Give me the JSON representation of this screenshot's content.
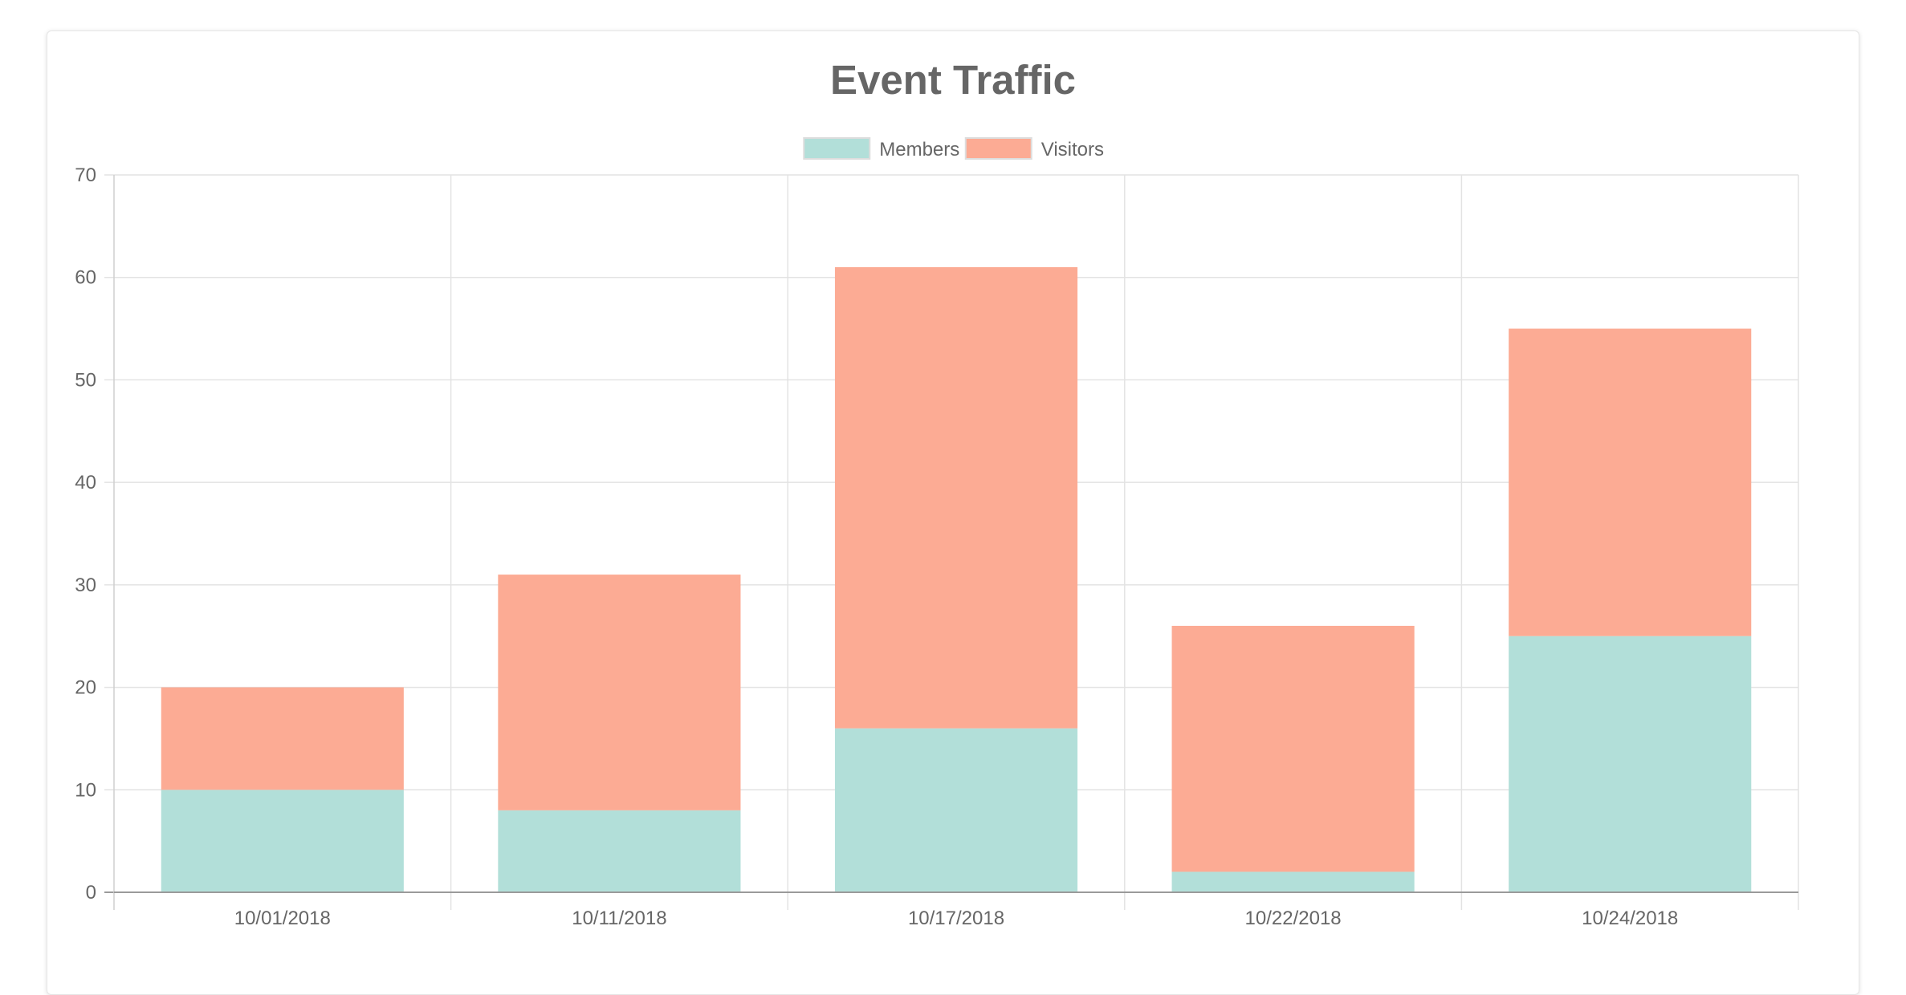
{
  "chart_data": {
    "type": "bar",
    "stacked": true,
    "title": "Event Traffic",
    "categories": [
      "10/01/2018",
      "10/11/2018",
      "10/17/2018",
      "10/22/2018",
      "10/24/2018"
    ],
    "series": [
      {
        "name": "Members",
        "values": [
          10,
          8,
          16,
          2,
          25
        ],
        "color": "#b2dfd9"
      },
      {
        "name": "Visitors",
        "values": [
          10,
          23,
          45,
          24,
          30
        ],
        "color": "#fcab94"
      }
    ],
    "ylim": [
      0,
      70
    ],
    "yticks": [
      "0",
      "10",
      "20",
      "30",
      "40",
      "50",
      "60",
      "70"
    ],
    "grid": true,
    "legend_position": "top-center",
    "xlabel": "",
    "ylabel": ""
  }
}
